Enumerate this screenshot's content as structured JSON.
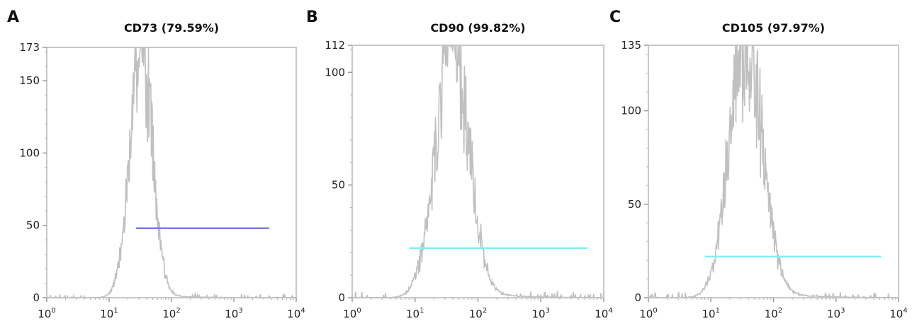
{
  "chart_data": [
    {
      "panel": "A",
      "type": "histogram",
      "title": "CD73 (79.59%)",
      "x_scale": "log",
      "xlim": [
        1,
        10000
      ],
      "ylim": [
        0,
        173
      ],
      "yticks": [
        0,
        50,
        100,
        150,
        173
      ],
      "xticks": [
        {
          "base": "10",
          "exp": "0",
          "value": 1
        },
        {
          "base": "10",
          "exp": "1",
          "value": 10
        },
        {
          "base": "10",
          "exp": "2",
          "value": 100
        },
        {
          "base": "10",
          "exp": "3",
          "value": 1000
        },
        {
          "base": "10",
          "exp": "4",
          "value": 10000
        }
      ],
      "peak_x": 32,
      "peak_y": 173,
      "spread": 0.18,
      "noise_seed": 7,
      "gate": {
        "x_start": 27,
        "x_end": 3700,
        "y": 48
      },
      "histogram_color": "#c0c0c0",
      "gate_color": "#7b7be8",
      "grid": false
    },
    {
      "panel": "B",
      "type": "histogram",
      "title": "CD90 (99.82%)",
      "x_scale": "log",
      "xlim": [
        1,
        10000
      ],
      "ylim": [
        0,
        112
      ],
      "yticks": [
        0,
        50,
        100,
        112
      ],
      "xticks": [
        {
          "base": "10",
          "exp": "0",
          "value": 1
        },
        {
          "base": "10",
          "exp": "1",
          "value": 10
        },
        {
          "base": "10",
          "exp": "2",
          "value": 100
        },
        {
          "base": "10",
          "exp": "3",
          "value": 1000
        },
        {
          "base": "10",
          "exp": "4",
          "value": 10000
        }
      ],
      "peak_x": 38,
      "peak_y": 112,
      "spread": 0.26,
      "noise_seed": 13,
      "gate": {
        "x_start": 8,
        "x_end": 5500,
        "y": 22
      },
      "histogram_color": "#c0c0c0",
      "gate_color": "#7ff0f0",
      "grid": false
    },
    {
      "panel": "C",
      "type": "histogram",
      "title": "CD105 (97.97%)",
      "x_scale": "log",
      "xlim": [
        1,
        10000
      ],
      "ylim": [
        0,
        135
      ],
      "yticks": [
        0,
        50,
        100,
        135
      ],
      "xticks": [
        {
          "base": "10",
          "exp": "0",
          "value": 1
        },
        {
          "base": "10",
          "exp": "1",
          "value": 10
        },
        {
          "base": "10",
          "exp": "2",
          "value": 100
        },
        {
          "base": "10",
          "exp": "3",
          "value": 1000
        },
        {
          "base": "10",
          "exp": "4",
          "value": 10000
        }
      ],
      "peak_x": 36,
      "peak_y": 135,
      "spread": 0.26,
      "noise_seed": 23,
      "gate": {
        "x_start": 8,
        "x_end": 5300,
        "y": 22
      },
      "histogram_color": "#c0c0c0",
      "gate_color": "#7ff0f0",
      "grid": false
    }
  ]
}
